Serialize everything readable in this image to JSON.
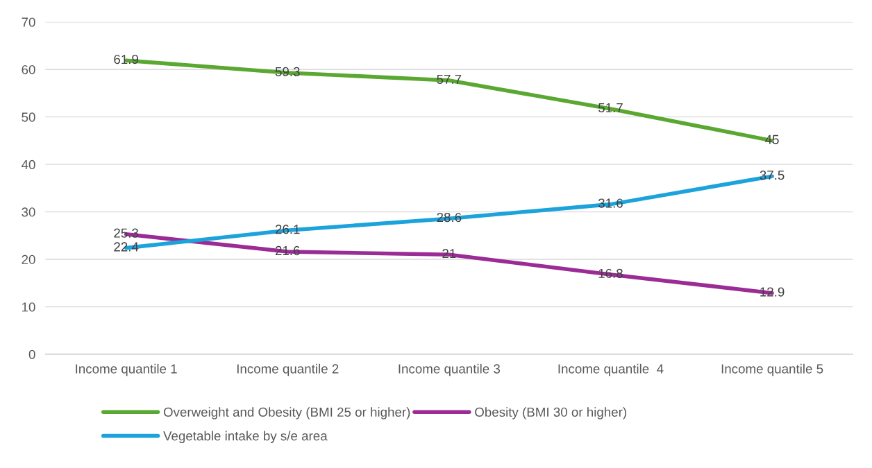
{
  "chart_data": {
    "type": "line",
    "categories": [
      "Income quantile 1",
      "Income quantile 2",
      "Income quantile 3",
      "Income quantile  4",
      "Income quantile 5"
    ],
    "series": [
      {
        "name": "Overweight and Obesity (BMI 25 or higher)",
        "color": "#5aa832",
        "values": [
          61.9,
          59.3,
          57.7,
          51.7,
          45
        ]
      },
      {
        "name": "Obesity (BMI 30 or higher)",
        "color": "#9b2c96",
        "values": [
          25.3,
          21.6,
          21,
          16.8,
          12.9
        ]
      },
      {
        "name": "Vegetable intake by s/e area",
        "color": "#1ca3dc",
        "values": [
          22.4,
          26.1,
          28.6,
          31.6,
          37.5
        ]
      }
    ],
    "ylim": [
      0,
      70
    ],
    "yticks": [
      0,
      10,
      20,
      30,
      40,
      50,
      60,
      70
    ],
    "grid": "y",
    "legend": "bottom",
    "data_labels": true,
    "marker": "none",
    "line_style": "solid"
  }
}
